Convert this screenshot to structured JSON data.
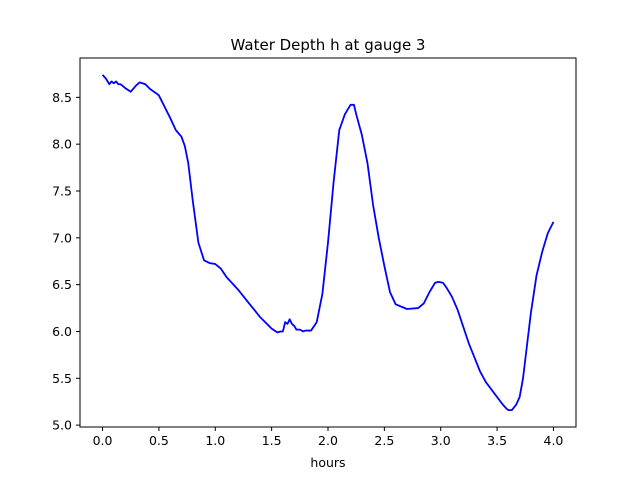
{
  "chart_data": {
    "type": "line",
    "title": "Water Depth h at gauge 3",
    "xlabel": "hours",
    "ylabel": "",
    "xlim": [
      -0.2,
      4.2
    ],
    "ylim": [
      4.98,
      8.92
    ],
    "grid": false,
    "legend": "none",
    "x_ticks": [
      0.0,
      0.5,
      1.0,
      1.5,
      2.0,
      2.5,
      3.0,
      3.5,
      4.0
    ],
    "x_tick_labels": [
      "0.0",
      "0.5",
      "1.0",
      "1.5",
      "2.0",
      "2.5",
      "3.0",
      "3.5",
      "4.0"
    ],
    "y_ticks": [
      5.0,
      5.5,
      6.0,
      6.5,
      7.0,
      7.5,
      8.0,
      8.5
    ],
    "y_tick_labels": [
      "5.0",
      "5.5",
      "6.0",
      "6.5",
      "7.0",
      "7.5",
      "8.0",
      "8.5"
    ],
    "series": [
      {
        "color": "#0000ff",
        "x": [
          0.0,
          0.03,
          0.06,
          0.08,
          0.1,
          0.12,
          0.14,
          0.16,
          0.2,
          0.25,
          0.3,
          0.33,
          0.38,
          0.42,
          0.48,
          0.5,
          0.55,
          0.6,
          0.65,
          0.7,
          0.73,
          0.76,
          0.8,
          0.85,
          0.9,
          0.95,
          1.0,
          1.05,
          1.1,
          1.2,
          1.3,
          1.4,
          1.5,
          1.55,
          1.58,
          1.6,
          1.62,
          1.64,
          1.66,
          1.68,
          1.7,
          1.72,
          1.75,
          1.78,
          1.8,
          1.85,
          1.9,
          1.95,
          2.0,
          2.05,
          2.1,
          2.15,
          2.2,
          2.23,
          2.25,
          2.3,
          2.35,
          2.4,
          2.45,
          2.5,
          2.55,
          2.6,
          2.7,
          2.8,
          2.85,
          2.9,
          2.95,
          2.98,
          3.02,
          3.05,
          3.1,
          3.15,
          3.2,
          3.25,
          3.3,
          3.35,
          3.4,
          3.45,
          3.5,
          3.55,
          3.58,
          3.6,
          3.63,
          3.67,
          3.7,
          3.73,
          3.76,
          3.8,
          3.85,
          3.9,
          3.95,
          4.0
        ],
        "values": [
          8.74,
          8.7,
          8.64,
          8.67,
          8.65,
          8.67,
          8.64,
          8.64,
          8.6,
          8.56,
          8.63,
          8.66,
          8.64,
          8.59,
          8.54,
          8.52,
          8.4,
          8.28,
          8.15,
          8.08,
          7.98,
          7.8,
          7.4,
          6.95,
          6.76,
          6.73,
          6.72,
          6.67,
          6.58,
          6.45,
          6.3,
          6.15,
          6.03,
          5.99,
          6.0,
          6.0,
          6.1,
          6.08,
          6.13,
          6.08,
          6.06,
          6.02,
          6.02,
          6.0,
          6.01,
          6.01,
          6.1,
          6.4,
          6.95,
          7.6,
          8.15,
          8.32,
          8.42,
          8.42,
          8.32,
          8.1,
          7.8,
          7.35,
          7.0,
          6.7,
          6.42,
          6.29,
          6.24,
          6.25,
          6.3,
          6.42,
          6.52,
          6.53,
          6.52,
          6.47,
          6.37,
          6.23,
          6.05,
          5.87,
          5.72,
          5.57,
          5.46,
          5.38,
          5.3,
          5.22,
          5.18,
          5.16,
          5.16,
          5.22,
          5.3,
          5.5,
          5.8,
          6.2,
          6.6,
          6.85,
          7.05,
          7.17
        ]
      }
    ]
  }
}
